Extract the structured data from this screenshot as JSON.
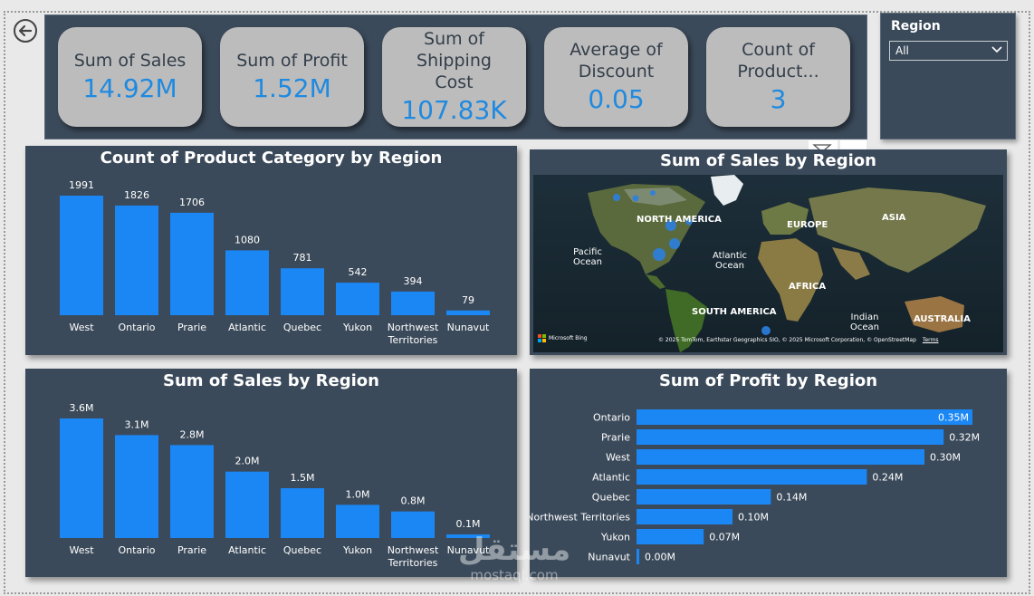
{
  "kpis": [
    {
      "label": "Sum of Sales",
      "value": "14.92M"
    },
    {
      "label": "Sum of Profit",
      "value": "1.52M"
    },
    {
      "label": "Sum of Shipping Cost",
      "value": "107.83K"
    },
    {
      "label": "Average of Discount",
      "value": "0.05"
    },
    {
      "label": "Count of Product...",
      "value": "3"
    }
  ],
  "slicer": {
    "title": "Region",
    "selected": "All"
  },
  "map": {
    "title": "Sum of Sales by Region",
    "labels": {
      "north_america": "NORTH AMERICA",
      "europe": "EUROPE",
      "asia": "ASIA",
      "pacific": "Pacific\nOcean",
      "atlantic": "Atlantic\nOcean",
      "africa": "AFRICA",
      "south_america": "SOUTH AMERICA",
      "indian": "Indian\nOcean",
      "australia": "AUSTRALIA"
    },
    "bing": "Microsoft Bing",
    "attribution": "© 2025 TomTom, Earthstar Geographics SIO, © 2025 Microsoft Corporation, © OpenStreetMap",
    "terms": "Terms"
  },
  "watermark": {
    "arabic": "مستقل",
    "latin": "mostaql.com"
  },
  "colors": {
    "bar": "#1a87f5",
    "panel": "#3b4a5a",
    "kpi_card": "#bcbcbc",
    "kpi_value": "#1f8ae0"
  },
  "chart_data": [
    {
      "type": "bar",
      "title": "Count of Product Category by Region",
      "categories": [
        "West",
        "Ontario",
        "Prarie",
        "Atlantic",
        "Quebec",
        "Yukon",
        "Northwest Territories",
        "Nunavut"
      ],
      "values": [
        1991,
        1826,
        1706,
        1080,
        781,
        542,
        394,
        79
      ],
      "labels": [
        "1991",
        "1826",
        "1706",
        "1080",
        "781",
        "542",
        "394",
        "79"
      ],
      "ylim": [
        0,
        1991
      ]
    },
    {
      "type": "bar",
      "title": "Sum of Sales by Region",
      "categories": [
        "West",
        "Ontario",
        "Prarie",
        "Atlantic",
        "Quebec",
        "Yukon",
        "Northwest Territories",
        "Nunavut"
      ],
      "values": [
        3.6,
        3.1,
        2.8,
        2.0,
        1.5,
        1.0,
        0.8,
        0.1
      ],
      "labels": [
        "3.6M",
        "3.1M",
        "2.8M",
        "2.0M",
        "1.5M",
        "1.0M",
        "0.8M",
        "0.1M"
      ],
      "ylim": [
        0,
        3.6
      ]
    },
    {
      "type": "bar",
      "orientation": "horizontal",
      "title": "Sum of Profit by Region",
      "categories": [
        "Ontario",
        "Prarie",
        "West",
        "Atlantic",
        "Quebec",
        "Northwest Territories",
        "Yukon",
        "Nunavut"
      ],
      "values": [
        0.35,
        0.32,
        0.3,
        0.24,
        0.14,
        0.1,
        0.07,
        0.0
      ],
      "labels": [
        "0.35M",
        "0.32M",
        "0.30M",
        "0.24M",
        "0.14M",
        "0.10M",
        "0.07M",
        "0.00M"
      ],
      "xlim": [
        0,
        0.35
      ]
    }
  ]
}
